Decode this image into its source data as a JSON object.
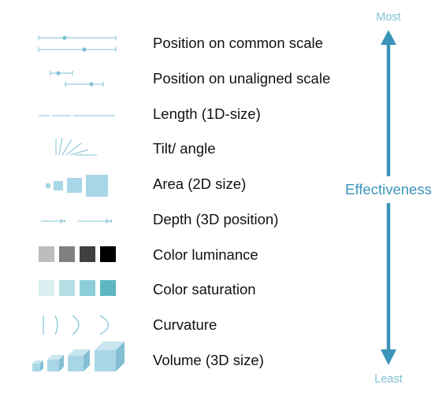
{
  "title": "",
  "channels": [
    {
      "label": "Position on common scale",
      "glyph": "position-common-icon"
    },
    {
      "label": "Position on unaligned scale",
      "glyph": "position-unaligned-icon"
    },
    {
      "label": "Length (1D-size)",
      "glyph": "length-icon"
    },
    {
      "label": "Tilt/ angle",
      "glyph": "tilt-angle-icon"
    },
    {
      "label": "Area (2D size)",
      "glyph": "area-icon"
    },
    {
      "label": "Depth (3D position)",
      "glyph": "depth-icon"
    },
    {
      "label": "Color luminance",
      "glyph": "color-luminance-icon"
    },
    {
      "label": "Color saturation",
      "glyph": "color-saturation-icon"
    },
    {
      "label": "Curvature",
      "glyph": "curvature-icon"
    },
    {
      "label": "Volume (3D size)",
      "glyph": "volume-icon"
    }
  ],
  "scale": {
    "top_label": "Most",
    "bottom_label": "Least",
    "axis_label": "Effectiveness"
  },
  "colors": {
    "accent": "#3b95b8",
    "glyph": "#7fc1d4",
    "fill": "#a9d6e6",
    "luminance": [
      "#bdbdbd",
      "#808080",
      "#404040",
      "#000000"
    ],
    "saturation": [
      "#daeef1",
      "#b3dfe5",
      "#8ccdd7",
      "#5bb5c2"
    ]
  }
}
